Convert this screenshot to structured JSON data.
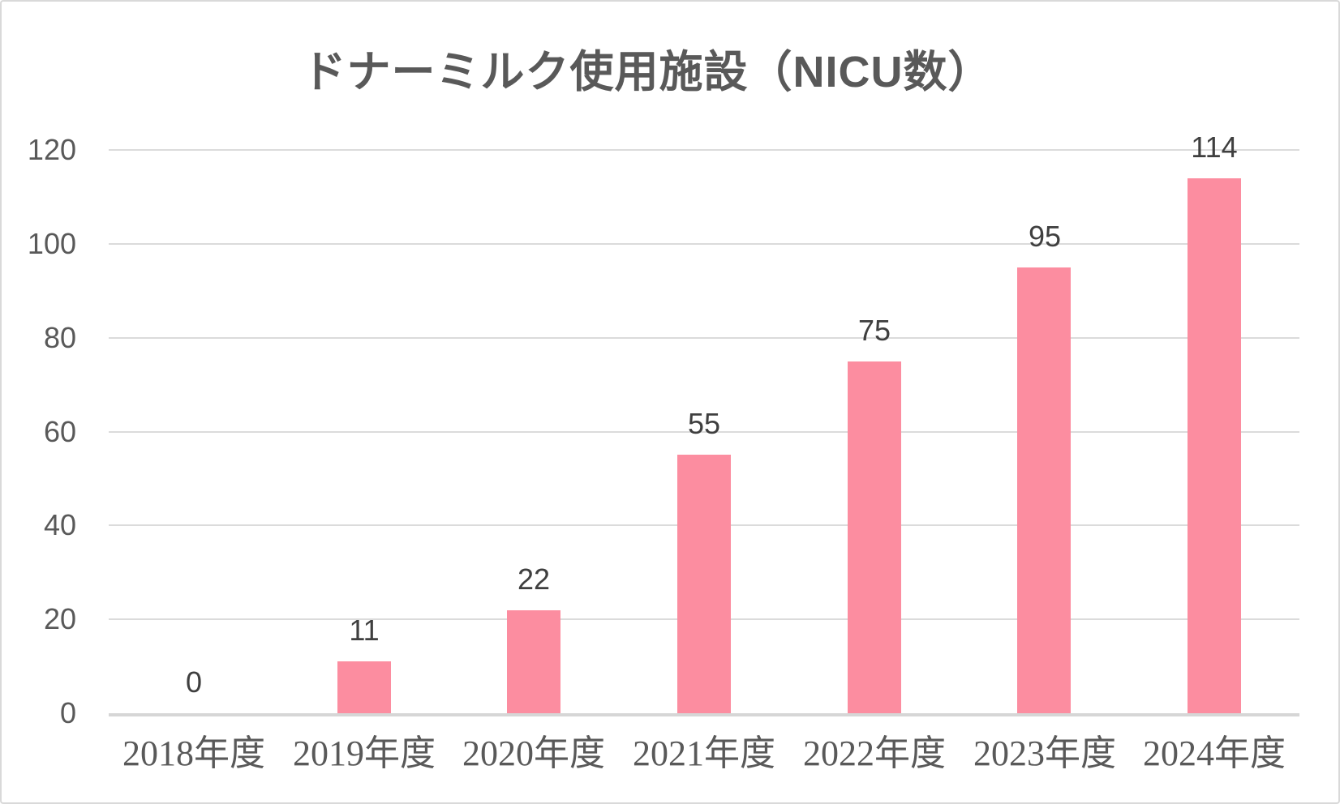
{
  "chart_data": {
    "type": "bar",
    "title": "ドナーミルク使用施設（NICU数）",
    "categories": [
      "2018年度",
      "2019年度",
      "2020年度",
      "2021年度",
      "2022年度",
      "2023年度",
      "2024年度"
    ],
    "values": [
      0,
      11,
      22,
      55,
      75,
      95,
      114
    ],
    "data_labels": [
      "0",
      "11",
      "22",
      "55",
      "75",
      "95",
      "114"
    ],
    "y_ticks": [
      0,
      20,
      40,
      60,
      80,
      100,
      120
    ],
    "ylim": [
      0,
      120
    ],
    "xlabel": "",
    "ylabel": "",
    "grid": "horizontal",
    "legend_position": "none",
    "colors": {
      "bar": "#fc8da0",
      "title_text": "#595959",
      "axis_text": "#595959",
      "data_label_text": "#3f3f3f",
      "gridline": "#dbdbdb",
      "axis_line": "#d6d6d6",
      "background": "#ffffff",
      "border": "#d9d9d9"
    }
  }
}
